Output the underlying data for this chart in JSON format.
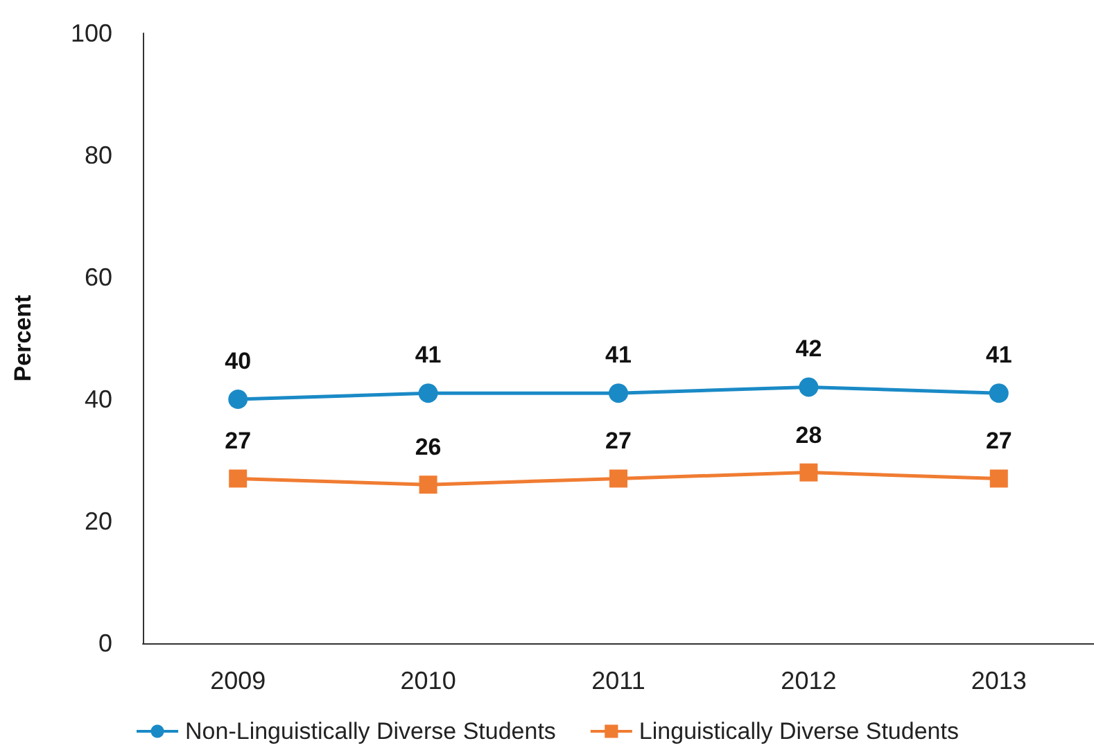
{
  "chart_data": {
    "type": "line",
    "ylabel": "Percent",
    "categories": [
      "2009",
      "2010",
      "2011",
      "2012",
      "2013"
    ],
    "series": [
      {
        "name": "Non-Linguistically Diverse Students",
        "color": "#1a8ac6",
        "marker": "circle",
        "values": [
          40,
          41,
          41,
          42,
          41
        ]
      },
      {
        "name": "Linguistically Diverse Students",
        "color": "#f07c32",
        "marker": "square",
        "values": [
          27,
          26,
          27,
          28,
          27
        ]
      }
    ],
    "ylim": [
      0,
      100
    ],
    "yticks": [
      0,
      20,
      40,
      60,
      80,
      100
    ],
    "grid": false,
    "legend": "bottom",
    "data_labels": true,
    "line_style": "solid"
  }
}
